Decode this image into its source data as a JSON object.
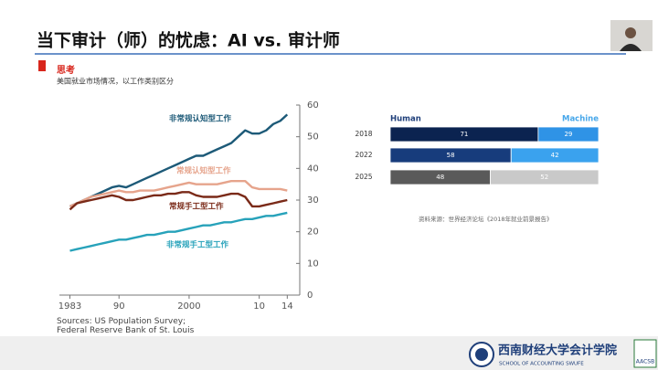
{
  "header": {
    "title": "当下审计（师）的忧虑：AI vs. 审计师"
  },
  "chart_data": [
    {
      "type": "line",
      "title": "思考",
      "subtitle": "美国就业市场情况，以工作类别区分",
      "source": "Sources: US Population Survey; Federal Reserve Bank of St. Louis",
      "x": [
        1983,
        1984,
        1985,
        1986,
        1987,
        1988,
        1989,
        1990,
        1991,
        1992,
        1993,
        1994,
        1995,
        1996,
        1997,
        1998,
        1999,
        2000,
        2001,
        2002,
        2003,
        2004,
        2005,
        2006,
        2007,
        2008,
        2009,
        2010,
        2011,
        2012,
        2013,
        2014
      ],
      "series": [
        {
          "name": "非常规认知型工作",
          "color": "#1d5a78",
          "values": [
            28,
            29,
            30,
            31,
            32,
            33,
            34,
            34.5,
            34,
            35,
            36,
            37,
            38,
            39,
            40,
            41,
            42,
            43,
            44,
            44,
            45,
            46,
            47,
            48,
            50,
            52,
            51,
            51,
            52,
            54,
            55,
            57
          ]
        },
        {
          "name": "常规认知型工作",
          "color": "#e6a48c",
          "values": [
            28,
            29,
            30,
            31,
            31.5,
            32,
            32.5,
            33,
            32.5,
            32.5,
            33,
            33,
            33,
            33.5,
            34,
            34.5,
            35,
            35.5,
            35,
            35,
            35,
            35,
            35.5,
            36,
            36,
            36,
            34,
            33.5,
            33.5,
            33.5,
            33.5,
            33
          ]
        },
        {
          "name": "常规手工型工作",
          "color": "#7a2a18",
          "values": [
            27,
            29,
            29.5,
            30,
            30.5,
            31,
            31.5,
            31,
            30,
            30,
            30.5,
            31,
            31.5,
            31.5,
            32,
            32,
            32.5,
            32.5,
            31.5,
            31,
            31,
            31,
            31.5,
            32,
            32,
            31,
            28,
            28,
            28.5,
            29,
            29.5,
            30
          ]
        },
        {
          "name": "非常规手工型工作",
          "color": "#27a2ba",
          "values": [
            14,
            14.5,
            15,
            15.5,
            16,
            16.5,
            17,
            17.5,
            17.5,
            18,
            18.5,
            19,
            19,
            19.5,
            20,
            20,
            20.5,
            21,
            21.5,
            22,
            22,
            22.5,
            23,
            23,
            23.5,
            24,
            24,
            24.5,
            25,
            25,
            25.5,
            26
          ]
        }
      ],
      "xlim": [
        1981.5,
        2015
      ],
      "xticks": [
        1983,
        {
          "value": 1990,
          "label": "90"
        },
        2000,
        {
          "value": 2010,
          "label": "10"
        },
        {
          "value": 2014,
          "label": "14"
        }
      ],
      "ylim": [
        0,
        60
      ],
      "yticks": [
        0,
        10,
        20,
        30,
        40,
        50,
        60
      ],
      "y_axis_side": "right"
    },
    {
      "type": "bar",
      "orientation": "horizontal",
      "stacked": true,
      "source": "资料来源：世界经济论坛《2018年就业前景报告》",
      "categories": [
        "2018",
        "2022",
        "2025"
      ],
      "series": [
        {
          "name": "Human",
          "color": "#1f3f7a",
          "colors": [
            "#0b2350",
            "#173c7c",
            "#5a5a5a"
          ],
          "values": [
            71,
            58,
            48
          ]
        },
        {
          "name": "Machine",
          "color": "#47a7ea",
          "colors": [
            "#2f93e6",
            "#3aa2ee",
            "#c9c9c9"
          ],
          "values": [
            29,
            42,
            52
          ]
        }
      ],
      "xlim": [
        0,
        100
      ]
    }
  ],
  "footer": {
    "school": "西南财经大学会计学院",
    "school_en": "SCHOOL OF ACCOUNTING SWUFE",
    "accreditation": "AACSB"
  }
}
